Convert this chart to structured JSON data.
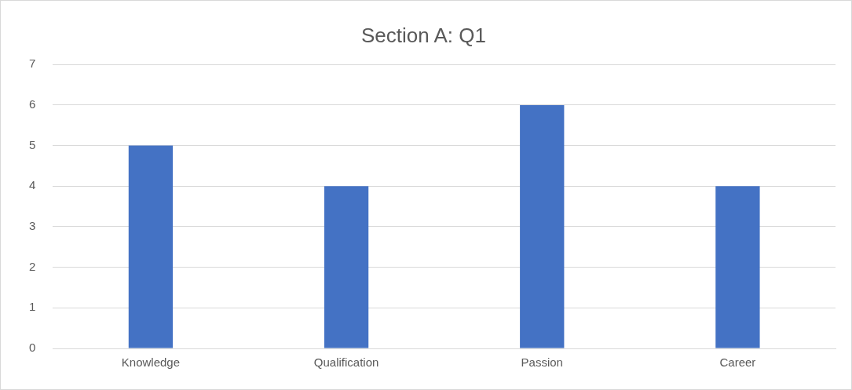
{
  "chart_data": {
    "type": "bar",
    "title": "Section A: Q1",
    "categories": [
      "Knowledge",
      "Qualification",
      "Passion",
      "Career"
    ],
    "values": [
      5,
      4,
      6,
      4
    ],
    "color": "#4472c4",
    "ylim": [
      0,
      7
    ],
    "yticks": [
      0,
      1,
      2,
      3,
      4,
      5,
      6,
      7
    ],
    "grid": "y",
    "legend": false
  }
}
